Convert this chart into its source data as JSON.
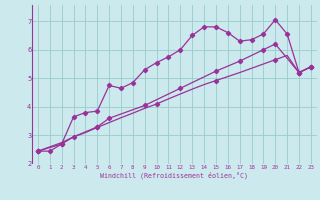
{
  "xlabel": "Windchill (Refroidissement éolien,°C)",
  "xlim": [
    -0.5,
    23.5
  ],
  "ylim": [
    2.0,
    7.6
  ],
  "yticks": [
    2,
    3,
    4,
    5,
    6,
    7
  ],
  "xticks": [
    0,
    1,
    2,
    3,
    4,
    5,
    6,
    7,
    8,
    9,
    10,
    11,
    12,
    13,
    14,
    15,
    16,
    17,
    18,
    19,
    20,
    21,
    22,
    23
  ],
  "bg_color": "#cce9ed",
  "grid_color": "#99cccc",
  "line_color": "#993399",
  "line1_x": [
    0,
    1,
    2,
    3,
    4,
    5,
    6,
    7,
    8,
    9,
    10,
    11,
    12,
    13,
    14,
    15,
    16,
    17,
    18,
    19,
    20,
    21,
    22,
    23
  ],
  "line1_y": [
    2.45,
    2.45,
    2.7,
    3.65,
    3.8,
    3.85,
    4.75,
    4.65,
    4.85,
    5.3,
    5.55,
    5.75,
    6.0,
    6.5,
    6.8,
    6.8,
    6.6,
    6.3,
    6.35,
    6.55,
    7.05,
    6.55,
    5.2,
    5.4
  ],
  "line2_x": [
    0,
    2,
    3,
    5,
    6,
    9,
    12,
    15,
    17,
    19,
    20,
    22,
    23
  ],
  "line2_y": [
    2.45,
    2.7,
    2.95,
    3.3,
    3.6,
    4.05,
    4.65,
    5.25,
    5.6,
    6.0,
    6.2,
    5.2,
    5.4
  ],
  "line3_x": [
    0,
    1,
    2,
    3,
    4,
    5,
    6,
    7,
    8,
    9,
    10,
    11,
    12,
    13,
    14,
    15,
    16,
    17,
    18,
    19,
    20,
    21,
    22,
    23
  ],
  "line3_y": [
    2.45,
    2.6,
    2.75,
    2.95,
    3.1,
    3.28,
    3.45,
    3.62,
    3.78,
    3.95,
    4.1,
    4.28,
    4.45,
    4.62,
    4.78,
    4.92,
    5.06,
    5.2,
    5.35,
    5.5,
    5.65,
    5.8,
    5.2,
    5.4
  ],
  "marker1_x": [
    0,
    1,
    2,
    3,
    4,
    5,
    6,
    7,
    8,
    9,
    10,
    11,
    12,
    13,
    14,
    15,
    16,
    17,
    18,
    19,
    20,
    21,
    22,
    23
  ],
  "marker1_y": [
    2.45,
    2.45,
    2.7,
    3.65,
    3.8,
    3.85,
    4.75,
    4.65,
    4.85,
    5.3,
    5.55,
    5.75,
    6.0,
    6.5,
    6.8,
    6.8,
    6.6,
    6.3,
    6.35,
    6.55,
    7.05,
    6.55,
    5.2,
    5.4
  ],
  "marker2_x": [
    0,
    2,
    3,
    5,
    6,
    9,
    12,
    15,
    17,
    19,
    20,
    22,
    23
  ],
  "marker2_y": [
    2.45,
    2.7,
    2.95,
    3.3,
    3.6,
    4.05,
    4.65,
    5.25,
    5.6,
    6.0,
    6.2,
    5.2,
    5.4
  ],
  "marker3_x": [
    0,
    5,
    10,
    15,
    20,
    22,
    23
  ],
  "marker3_y": [
    2.45,
    3.28,
    4.1,
    4.92,
    5.65,
    5.2,
    5.4
  ]
}
